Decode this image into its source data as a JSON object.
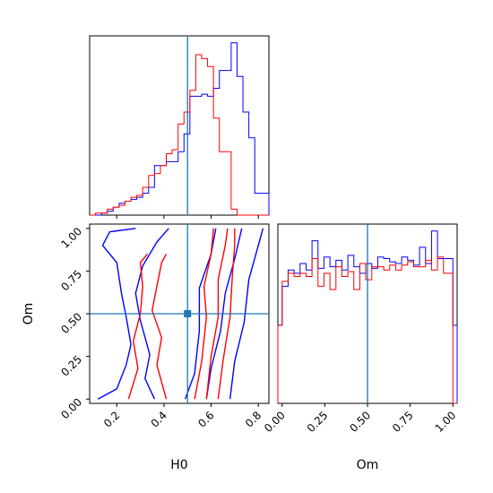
{
  "chart_data": {
    "type": "corner",
    "parameters": [
      "H0",
      "Om"
    ],
    "truth": {
      "H0": 0.5,
      "Om": 0.5
    },
    "colors": {
      "series_a": "#0000ff",
      "series_b": "#ff0000",
      "truth": "#1f77b4"
    },
    "axis_ranges": {
      "H0": [
        0.085,
        0.845
      ],
      "Om": [
        -0.025,
        1.025
      ]
    },
    "ticks": {
      "H0": [
        "0.2",
        "0.4",
        "0.6",
        "0.8"
      ],
      "Om": [
        "0.00",
        "0.25",
        "0.50",
        "0.75",
        "1.00"
      ]
    },
    "hist_H0": {
      "bin_edges": [
        0.085,
        0.11,
        0.135,
        0.16,
        0.185,
        0.21,
        0.235,
        0.26,
        0.285,
        0.31,
        0.335,
        0.36,
        0.385,
        0.41,
        0.435,
        0.46,
        0.485,
        0.51,
        0.535,
        0.56,
        0.585,
        0.61,
        0.635,
        0.66,
        0.685,
        0.71,
        0.735,
        0.76,
        0.785,
        0.81,
        0.845
      ],
      "series_a": [
        0,
        0,
        0.01,
        0.02,
        0.04,
        0.06,
        0.07,
        0.08,
        0.09,
        0.11,
        0.14,
        0.25,
        0.25,
        0.27,
        0.27,
        0.32,
        0.41,
        0.6,
        0.6,
        0.61,
        0.6,
        0.64,
        0.73,
        0.73,
        0.87,
        0.7,
        0.52,
        0.39,
        0.11,
        0.11
      ],
      "series_b": [
        0,
        0.01,
        0.01,
        0.03,
        0.04,
        0.05,
        0.07,
        0.09,
        0.1,
        0.14,
        0.2,
        0.21,
        0.25,
        0.31,
        0.33,
        0.46,
        0.52,
        0.63,
        0.81,
        0.79,
        0.75,
        0.49,
        0.32,
        0.32,
        0.03,
        0,
        0,
        0,
        0,
        0
      ]
    },
    "hist_Om": {
      "bin_edges": [
        -0.025,
        0.0,
        0.035,
        0.07,
        0.105,
        0.14,
        0.175,
        0.21,
        0.245,
        0.28,
        0.315,
        0.35,
        0.385,
        0.42,
        0.455,
        0.49,
        0.525,
        0.56,
        0.595,
        0.63,
        0.665,
        0.7,
        0.735,
        0.77,
        0.805,
        0.84,
        0.875,
        0.91,
        0.945,
        0.98,
        1.0,
        1.025
      ],
      "series_a": [
        0.48,
        0.72,
        0.82,
        0.8,
        0.86,
        0.82,
        1.0,
        0.83,
        0.9,
        0.84,
        0.88,
        0.82,
        0.91,
        0.84,
        0.8,
        0.86,
        0.83,
        0.9,
        0.89,
        0.87,
        0.86,
        0.9,
        0.88,
        0.85,
        0.96,
        0.86,
        1.06,
        0.89,
        0.89,
        0.89,
        0.48
      ],
      "series_b": [
        0.48,
        0.75,
        0.8,
        0.78,
        0.8,
        0.78,
        0.89,
        0.72,
        0.8,
        0.7,
        0.84,
        0.78,
        0.81,
        0.7,
        0.86,
        0.76,
        0.84,
        0.84,
        0.82,
        0.85,
        0.82,
        0.85,
        0.87,
        0.84,
        0.84,
        0.88,
        0.82,
        0.9,
        0.8,
        0.8,
        0.0
      ]
    },
    "contours": {
      "series_a": [
        [
          [
            0.49,
            0.0
          ],
          [
            0.53,
            0.15
          ],
          [
            0.55,
            0.4
          ],
          [
            0.55,
            0.65
          ],
          [
            0.6,
            0.85
          ],
          [
            0.62,
            1.0
          ]
        ],
        [
          [
            0.58,
            0.0
          ],
          [
            0.6,
            0.18
          ],
          [
            0.64,
            0.4
          ],
          [
            0.66,
            0.62
          ],
          [
            0.7,
            0.82
          ],
          [
            0.73,
            1.0
          ]
        ],
        [
          [
            0.68,
            0.0
          ],
          [
            0.7,
            0.22
          ],
          [
            0.74,
            0.45
          ],
          [
            0.76,
            0.7
          ],
          [
            0.8,
            0.9
          ],
          [
            0.82,
            1.0
          ]
        ],
        [
          [
            0.12,
            0.0
          ],
          [
            0.2,
            0.06
          ],
          [
            0.24,
            0.2
          ],
          [
            0.26,
            0.32
          ],
          [
            0.24,
            0.48
          ],
          [
            0.22,
            0.62
          ],
          [
            0.2,
            0.8
          ],
          [
            0.14,
            0.9
          ],
          [
            0.17,
            0.98
          ],
          [
            0.28,
            1.0
          ]
        ],
        [
          [
            0.36,
            0.0
          ],
          [
            0.32,
            0.12
          ],
          [
            0.34,
            0.26
          ],
          [
            0.3,
            0.46
          ],
          [
            0.28,
            0.62
          ],
          [
            0.31,
            0.78
          ],
          [
            0.37,
            0.92
          ],
          [
            0.42,
            1.0
          ]
        ]
      ],
      "series_b": [
        [
          [
            0.53,
            0.0
          ],
          [
            0.56,
            0.22
          ],
          [
            0.58,
            0.48
          ],
          [
            0.57,
            0.66
          ],
          [
            0.6,
            0.85
          ],
          [
            0.61,
            1.0
          ]
        ],
        [
          [
            0.58,
            0.0
          ],
          [
            0.6,
            0.25
          ],
          [
            0.63,
            0.48
          ],
          [
            0.63,
            0.7
          ],
          [
            0.66,
            0.9
          ],
          [
            0.67,
            1.0
          ]
        ],
        [
          [
            0.63,
            0.0
          ],
          [
            0.65,
            0.22
          ],
          [
            0.68,
            0.48
          ],
          [
            0.69,
            0.72
          ],
          [
            0.7,
            0.9
          ],
          [
            0.7,
            1.0
          ]
        ],
        [
          [
            0.25,
            0.0
          ],
          [
            0.29,
            0.18
          ],
          [
            0.27,
            0.34
          ],
          [
            0.3,
            0.5
          ],
          [
            0.31,
            0.66
          ],
          [
            0.3,
            0.8
          ],
          [
            0.33,
            0.85
          ]
        ],
        [
          [
            0.41,
            0.0
          ],
          [
            0.37,
            0.2
          ],
          [
            0.39,
            0.36
          ],
          [
            0.35,
            0.52
          ],
          [
            0.37,
            0.66
          ],
          [
            0.39,
            0.8
          ],
          [
            0.41,
            0.85
          ]
        ]
      ]
    }
  }
}
